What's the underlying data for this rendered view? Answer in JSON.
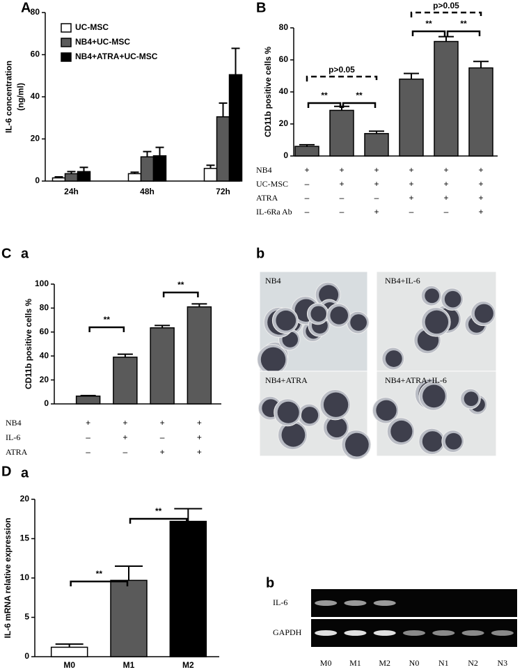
{
  "chart_data": [
    {
      "type": "bar",
      "panel_label": "A",
      "y_label": [
        "IL-6 concentration",
        "(ng/ml)"
      ],
      "categories": [
        "24h",
        "48h",
        "72h"
      ],
      "series": [
        {
          "name": "UC-MSC",
          "color": "#ffffff",
          "values": [
            1.5,
            3.5,
            6
          ],
          "errors": [
            0.5,
            0.7,
            1.5
          ]
        },
        {
          "name": "NB4+UC-MSC",
          "color": "#5a5a5a",
          "values": [
            3.5,
            11.5,
            30.5
          ],
          "errors": [
            1,
            2.5,
            6.5
          ]
        },
        {
          "name": "NB4+ATRA+UC-MSC",
          "color": "#000000",
          "values": [
            4.5,
            12,
            50.5
          ],
          "errors": [
            2,
            4,
            12.5
          ]
        }
      ],
      "ylim": [
        0,
        80
      ],
      "yticks": [
        0,
        20,
        40,
        60,
        80
      ],
      "legend": "top-left"
    },
    {
      "type": "bar",
      "panel_label": "B",
      "y_label": [
        "CD11b positive cells %"
      ],
      "color": "#5a5a5a",
      "values": [
        6,
        28.5,
        14,
        48,
        71.5,
        55
      ],
      "errors": [
        1,
        2.5,
        1.5,
        3.5,
        3,
        4
      ],
      "ylim": [
        0,
        80
      ],
      "yticks": [
        0,
        20,
        40,
        60,
        80
      ],
      "conditions": [
        {
          "label": "NB4",
          "marks": [
            "+",
            "+",
            "+",
            "+",
            "+",
            "+"
          ]
        },
        {
          "label": "UC-MSC",
          "marks": [
            "–",
            "+",
            "+",
            "+",
            "+",
            "+"
          ]
        },
        {
          "label": "ATRA",
          "marks": [
            "–",
            "–",
            "–",
            "+",
            "+",
            "+"
          ]
        },
        {
          "label": "IL-6Ra Ab",
          "marks": [
            "–",
            "–",
            "+",
            "–",
            "–",
            "+"
          ]
        }
      ],
      "annotations": [
        {
          "text": "**",
          "from": 0,
          "to": 1,
          "dashed": false
        },
        {
          "text": "**",
          "from": 1,
          "to": 2,
          "dashed": false
        },
        {
          "text": "p>0.05",
          "from": 0,
          "to": 2,
          "dashed": true
        },
        {
          "text": "**",
          "from": 3,
          "to": 4,
          "dashed": false
        },
        {
          "text": "**",
          "from": 4,
          "to": 5,
          "dashed": false
        },
        {
          "text": "p>0.05",
          "from": 3,
          "to": 5,
          "dashed": true
        }
      ]
    },
    {
      "type": "bar",
      "panel_label": "C",
      "sub_label": "a",
      "y_label": [
        "CD11b positive cells %"
      ],
      "color": "#5a5a5a",
      "values": [
        6.5,
        39,
        63.5,
        81
      ],
      "errors": [
        0.5,
        2.5,
        2,
        2.5
      ],
      "ylim": [
        0,
        100
      ],
      "yticks": [
        0,
        20,
        40,
        60,
        80,
        100
      ],
      "conditions": [
        {
          "label": "NB4",
          "marks": [
            "+",
            "+",
            "+",
            "+"
          ]
        },
        {
          "label": "IL-6",
          "marks": [
            "–",
            "+",
            "–",
            "+"
          ]
        },
        {
          "label": "ATRA",
          "marks": [
            "–",
            "–",
            "+",
            "+"
          ]
        }
      ],
      "annotations": [
        {
          "text": "**",
          "from": 0,
          "to": 1,
          "dashed": false
        },
        {
          "text": "**",
          "from": 2,
          "to": 3,
          "dashed": false
        }
      ]
    },
    {
      "type": "bar",
      "panel_label": "D",
      "sub_label": "a",
      "y_label": [
        "IL-6 mRNA relative expression"
      ],
      "categories": [
        "M0",
        "M1",
        "M2"
      ],
      "colors": [
        "#ffffff",
        "#5a5a5a",
        "#000000"
      ],
      "values": [
        1.2,
        9.7,
        17.2
      ],
      "errors": [
        0.4,
        1.8,
        1.6
      ],
      "ylim": [
        0,
        20
      ],
      "yticks": [
        0,
        5,
        10,
        15,
        20
      ],
      "annotations": [
        {
          "text": "**",
          "from": 0,
          "to": 1,
          "dashed": false
        },
        {
          "text": "**",
          "from": 1,
          "to": 2,
          "dashed": false
        }
      ]
    }
  ],
  "micrographs": {
    "sub_label": "b",
    "images": [
      "NB4",
      "NB4+IL-6",
      "NB4+ATRA",
      "NB4+ATRA+IL-6"
    ]
  },
  "gel": {
    "sub_label": "b",
    "rows": [
      "IL-6",
      "GAPDH"
    ],
    "lanes": [
      "M0",
      "M1",
      "M2",
      "N0",
      "N1",
      "N2",
      "N3"
    ]
  }
}
